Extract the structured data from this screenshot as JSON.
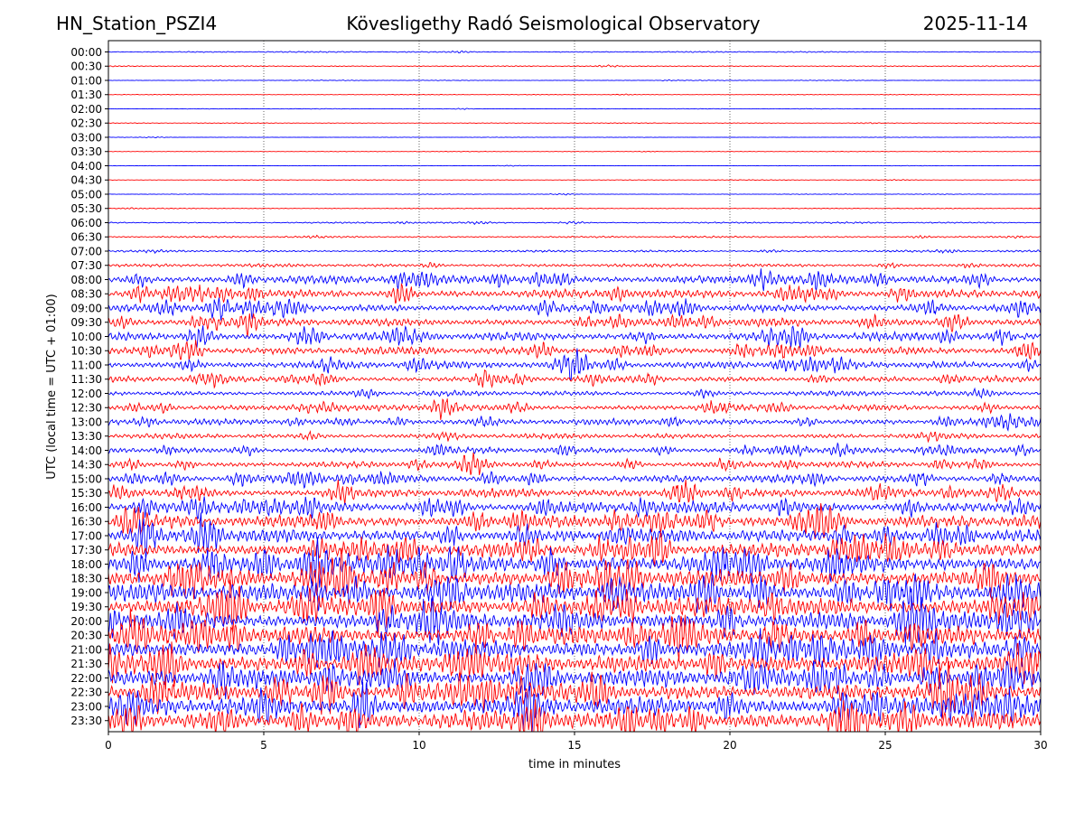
{
  "header": {
    "station": "HN_Station_PSZI4",
    "title": "Kövesligethy Radó Seismological Observatory",
    "date": "2025-11-14"
  },
  "chart_data": {
    "type": "line",
    "title": "Kövesligethy Radó Seismological Observatory",
    "xlabel": "time in minutes",
    "ylabel": "UTC (local time = UTC + 01:00)",
    "xlim": [
      0,
      30
    ],
    "x_ticks": [
      0,
      5,
      10,
      15,
      20,
      25,
      30
    ],
    "grid": "vertical dotted at 5-minute ticks",
    "row_labels": [
      "00:00",
      "00:30",
      "01:00",
      "01:30",
      "02:00",
      "02:30",
      "03:00",
      "03:30",
      "04:00",
      "04:30",
      "05:00",
      "05:30",
      "06:00",
      "06:30",
      "07:00",
      "07:30",
      "08:00",
      "08:30",
      "09:00",
      "09:30",
      "10:00",
      "10:30",
      "11:00",
      "11:30",
      "12:00",
      "12:30",
      "13:00",
      "13:30",
      "14:00",
      "14:30",
      "15:00",
      "15:30",
      "16:00",
      "16:30",
      "17:00",
      "17:30",
      "18:00",
      "18:30",
      "19:00",
      "19:30",
      "20:00",
      "20:30",
      "21:00",
      "21:30",
      "22:00",
      "22:30",
      "23:00",
      "23:30"
    ],
    "row_colors": [
      "#0000ff",
      "#ff0000"
    ],
    "relative_amplitude": [
      0.7,
      0.6,
      0.4,
      0.35,
      0.35,
      0.35,
      0.3,
      0.3,
      0.3,
      0.35,
      0.4,
      0.5,
      0.9,
      1.0,
      1.2,
      2.0,
      5.0,
      5.0,
      5.0,
      4.5,
      5.0,
      4.5,
      4.5,
      3.5,
      3.0,
      3.5,
      3.5,
      3.0,
      3.5,
      3.5,
      4.5,
      5.0,
      6.5,
      7.5,
      7.5,
      8.5,
      11.0,
      11.0,
      11.0,
      11.0,
      11.0,
      11.0,
      11.0,
      11.0,
      11.0,
      11.0,
      11.0,
      11.0
    ],
    "colors": {
      "blue": "#0000ff",
      "red": "#ff0000"
    }
  }
}
